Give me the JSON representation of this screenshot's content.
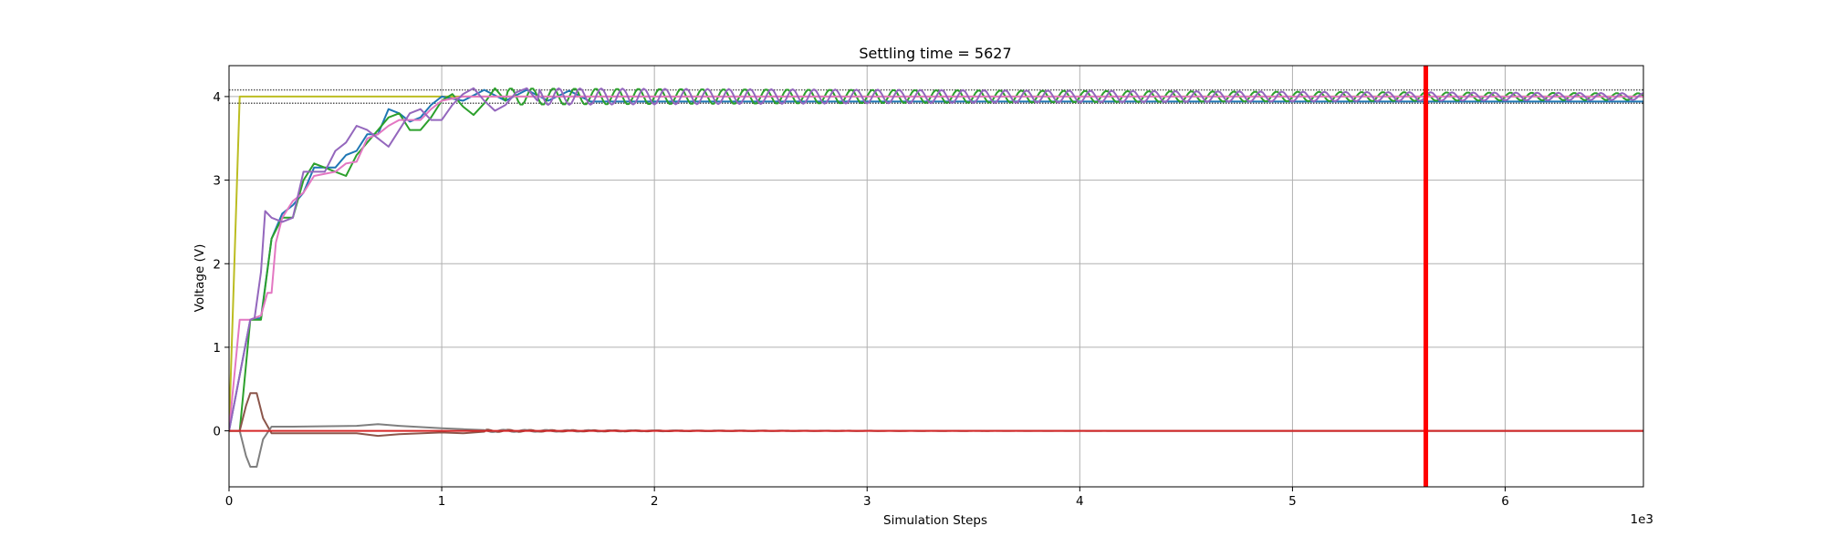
{
  "chart_data": {
    "type": "line",
    "title": "Settling time = 5627",
    "xlabel": "Simulation Steps",
    "ylabel": "Voltage (V)",
    "x_offset_label": "1e3",
    "xlim": [
      0,
      6.65
    ],
    "ylim": [
      -0.67,
      4.37
    ],
    "xticks": [
      0,
      1,
      2,
      3,
      4,
      5,
      6
    ],
    "yticks": [
      0,
      1,
      2,
      3,
      4
    ],
    "grid": true,
    "settling_time": 5.627,
    "tolerance_band": {
      "upper": 4.08,
      "lower": 3.92
    },
    "reference_level": 4.0,
    "series": [
      {
        "color": "#bcbd22",
        "points": [
          [
            0,
            0
          ],
          [
            0.05,
            4.0
          ],
          [
            6.65,
            4.0
          ]
        ]
      },
      {
        "color": "#1f77b4",
        "points": [
          [
            0,
            0
          ],
          [
            0.1,
            1.33
          ],
          [
            0.15,
            1.35
          ],
          [
            0.2,
            2.3
          ],
          [
            0.25,
            2.6
          ],
          [
            0.3,
            2.7
          ],
          [
            0.35,
            2.85
          ],
          [
            0.4,
            3.15
          ],
          [
            0.5,
            3.15
          ],
          [
            0.55,
            3.3
          ],
          [
            0.6,
            3.35
          ],
          [
            0.65,
            3.55
          ],
          [
            0.7,
            3.55
          ],
          [
            0.75,
            3.85
          ],
          [
            0.8,
            3.8
          ],
          [
            0.85,
            3.7
          ],
          [
            0.9,
            3.75
          ],
          [
            0.95,
            3.9
          ],
          [
            1.0,
            4.0
          ],
          [
            1.1,
            3.95
          ],
          [
            1.2,
            4.08
          ],
          [
            1.3,
            3.95
          ],
          [
            1.4,
            4.08
          ],
          [
            1.5,
            3.95
          ],
          [
            1.6,
            4.07
          ],
          [
            1.7,
            3.94
          ]
        ]
      },
      {
        "color": "#2ca02c",
        "osc": {
          "center": 4.0,
          "period": 0.1,
          "amp0": 0.1,
          "amp1": 0.04,
          "phase": 0
        },
        "points": [
          [
            0,
            0
          ],
          [
            0.05,
            0
          ],
          [
            0.1,
            1.33
          ],
          [
            0.15,
            1.33
          ],
          [
            0.2,
            2.3
          ],
          [
            0.25,
            2.55
          ],
          [
            0.3,
            2.55
          ],
          [
            0.35,
            3.0
          ],
          [
            0.4,
            3.2
          ],
          [
            0.45,
            3.15
          ],
          [
            0.5,
            3.1
          ],
          [
            0.55,
            3.05
          ],
          [
            0.6,
            3.3
          ],
          [
            0.65,
            3.45
          ],
          [
            0.7,
            3.6
          ],
          [
            0.75,
            3.75
          ],
          [
            0.8,
            3.8
          ],
          [
            0.85,
            3.6
          ],
          [
            0.9,
            3.6
          ],
          [
            0.95,
            3.75
          ],
          [
            1.0,
            3.95
          ],
          [
            1.05,
            4.03
          ],
          [
            1.1,
            3.88
          ],
          [
            1.15,
            3.78
          ],
          [
            1.2,
            3.92
          ],
          [
            1.25,
            4.1
          ],
          [
            1.3,
            3.95
          ]
        ]
      },
      {
        "color": "#e377c2",
        "points": [
          [
            0,
            0
          ],
          [
            0.05,
            1.33
          ],
          [
            0.1,
            1.33
          ],
          [
            0.15,
            1.38
          ],
          [
            0.18,
            1.65
          ],
          [
            0.2,
            1.65
          ],
          [
            0.22,
            2.25
          ],
          [
            0.25,
            2.55
          ],
          [
            0.3,
            2.75
          ],
          [
            0.35,
            2.85
          ],
          [
            0.4,
            3.05
          ],
          [
            0.5,
            3.1
          ],
          [
            0.55,
            3.2
          ],
          [
            0.6,
            3.22
          ],
          [
            0.65,
            3.5
          ],
          [
            0.7,
            3.55
          ],
          [
            0.75,
            3.65
          ],
          [
            0.8,
            3.72
          ],
          [
            0.9,
            3.72
          ],
          [
            0.95,
            3.85
          ],
          [
            1.0,
            3.95
          ],
          [
            1.1,
            4.0
          ],
          [
            1.3,
            4.0
          ]
        ]
      },
      {
        "color": "#9467bd",
        "osc": {
          "center": 4.0,
          "period": 0.1,
          "amp0": 0.1,
          "amp1": 0.04,
          "phase": 0.5
        },
        "points": [
          [
            0,
            0
          ],
          [
            0.1,
            1.33
          ],
          [
            0.12,
            1.35
          ],
          [
            0.15,
            1.9
          ],
          [
            0.17,
            2.63
          ],
          [
            0.2,
            2.55
          ],
          [
            0.25,
            2.5
          ],
          [
            0.3,
            2.55
          ],
          [
            0.35,
            3.1
          ],
          [
            0.45,
            3.1
          ],
          [
            0.5,
            3.35
          ],
          [
            0.55,
            3.45
          ],
          [
            0.6,
            3.65
          ],
          [
            0.65,
            3.6
          ],
          [
            0.7,
            3.5
          ],
          [
            0.75,
            3.4
          ],
          [
            0.8,
            3.6
          ],
          [
            0.85,
            3.8
          ],
          [
            0.9,
            3.85
          ],
          [
            0.95,
            3.72
          ],
          [
            1.0,
            3.72
          ],
          [
            1.05,
            3.9
          ],
          [
            1.1,
            4.03
          ],
          [
            1.15,
            4.1
          ],
          [
            1.2,
            3.95
          ],
          [
            1.25,
            3.83
          ],
          [
            1.3,
            3.9
          ],
          [
            1.35,
            4.05
          ],
          [
            1.4,
            4.1
          ],
          [
            1.45,
            3.95
          ]
        ]
      },
      {
        "color": "#8c564b",
        "decay": {
          "center": 0.0,
          "period": 0.1,
          "amp0": 0.015,
          "phase": 0.2
        },
        "points": [
          [
            0,
            0
          ],
          [
            0.05,
            0
          ],
          [
            0.08,
            0.3
          ],
          [
            0.1,
            0.45
          ],
          [
            0.13,
            0.45
          ],
          [
            0.16,
            0.15
          ],
          [
            0.2,
            -0.03
          ],
          [
            0.3,
            -0.03
          ],
          [
            0.6,
            -0.03
          ],
          [
            0.7,
            -0.06
          ],
          [
            0.8,
            -0.04
          ],
          [
            1.0,
            -0.02
          ],
          [
            1.1,
            -0.03
          ],
          [
            1.2,
            -0.01
          ]
        ]
      },
      {
        "color": "#7f7f7f",
        "decay": {
          "center": 0.0,
          "period": 0.1,
          "amp0": 0.015,
          "phase": 0.7
        },
        "points": [
          [
            0,
            0
          ],
          [
            0.05,
            0
          ],
          [
            0.08,
            -0.3
          ],
          [
            0.1,
            -0.43
          ],
          [
            0.13,
            -0.43
          ],
          [
            0.16,
            -0.1
          ],
          [
            0.2,
            0.05
          ],
          [
            0.3,
            0.05
          ],
          [
            0.6,
            0.06
          ],
          [
            0.7,
            0.08
          ],
          [
            0.8,
            0.06
          ],
          [
            1.0,
            0.03
          ],
          [
            1.1,
            0.02
          ],
          [
            1.2,
            0.01
          ]
        ]
      },
      {
        "color": "#d62728",
        "points": [
          [
            0,
            0
          ],
          [
            6.65,
            0
          ]
        ]
      }
    ]
  }
}
